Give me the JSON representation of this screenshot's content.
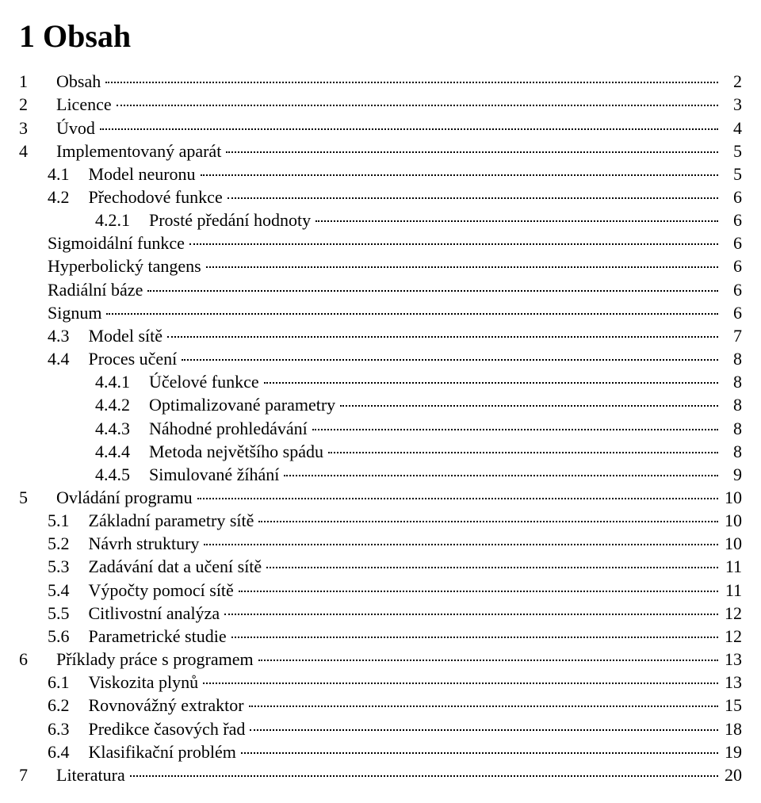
{
  "heading": "1 Obsah",
  "entries": [
    {
      "level": 0,
      "label": "1",
      "text": "Obsah",
      "page": "2"
    },
    {
      "level": 0,
      "label": "2",
      "text": "Licence",
      "page": "3"
    },
    {
      "level": 0,
      "label": "3",
      "text": "Úvod",
      "page": "4"
    },
    {
      "level": 0,
      "label": "4",
      "text": "Implementovaný aparát",
      "page": "5"
    },
    {
      "level": 1,
      "label": "4.1",
      "text": "Model neuronu",
      "page": "5"
    },
    {
      "level": 1,
      "label": "4.2",
      "text": "Přechodové funkce",
      "page": "6"
    },
    {
      "level": 2,
      "label": "4.2.1",
      "text": "Prosté předání hodnoty",
      "page": "6"
    },
    {
      "level": 1,
      "label": "",
      "text": "Sigmoidální funkce",
      "page": "6"
    },
    {
      "level": 1,
      "label": "",
      "text": "Hyperbolický tangens",
      "page": "6"
    },
    {
      "level": 1,
      "label": "",
      "text": "Radiální báze",
      "page": "6"
    },
    {
      "level": 1,
      "label": "",
      "text": "Signum",
      "page": "6"
    },
    {
      "level": 1,
      "label": "4.3",
      "text": "Model sítě",
      "page": "7"
    },
    {
      "level": 1,
      "label": "4.4",
      "text": "Proces učení",
      "page": "8"
    },
    {
      "level": 2,
      "label": "4.4.1",
      "text": "Účelové funkce",
      "page": "8"
    },
    {
      "level": 2,
      "label": "4.4.2",
      "text": "Optimalizované parametry",
      "page": "8"
    },
    {
      "level": 2,
      "label": "4.4.3",
      "text": "Náhodné prohledávání",
      "page": "8"
    },
    {
      "level": 2,
      "label": "4.4.4",
      "text": "Metoda největšího spádu",
      "page": "8"
    },
    {
      "level": 2,
      "label": "4.4.5",
      "text": "Simulované žíhání",
      "page": "9"
    },
    {
      "level": 0,
      "label": "5",
      "text": "Ovládání programu",
      "page": "10"
    },
    {
      "level": 1,
      "label": "5.1",
      "text": "Základní parametry sítě",
      "page": "10"
    },
    {
      "level": 1,
      "label": "5.2",
      "text": "Návrh struktury",
      "page": "10"
    },
    {
      "level": 1,
      "label": "5.3",
      "text": "Zadávání dat a učení sítě",
      "page": "11"
    },
    {
      "level": 1,
      "label": "5.4",
      "text": "Výpočty pomocí sítě",
      "page": "11"
    },
    {
      "level": 1,
      "label": "5.5",
      "text": "Citlivostní analýza",
      "page": "12"
    },
    {
      "level": 1,
      "label": "5.6",
      "text": "Parametrické studie",
      "page": "12"
    },
    {
      "level": 0,
      "label": "6",
      "text": "Příklady práce s programem",
      "page": "13"
    },
    {
      "level": 1,
      "label": "6.1",
      "text": "Viskozita plynů",
      "page": "13"
    },
    {
      "level": 1,
      "label": "6.2",
      "text": "Rovnovážný extraktor",
      "page": "15"
    },
    {
      "level": 1,
      "label": "6.3",
      "text": "Predikce časových řad",
      "page": "18"
    },
    {
      "level": 1,
      "label": "6.4",
      "text": "Klasifikační problém",
      "page": "19"
    },
    {
      "level": 0,
      "label": "7",
      "text": "Literatura",
      "page": "20"
    }
  ]
}
